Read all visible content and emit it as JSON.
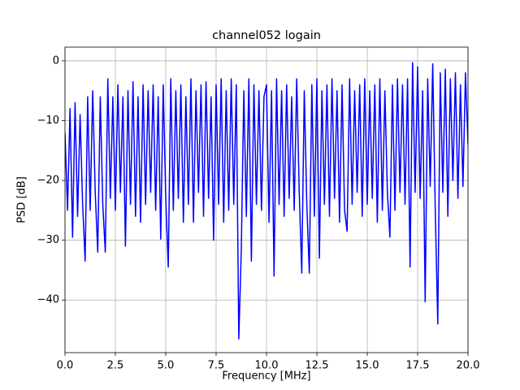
{
  "chart_data": {
    "type": "line",
    "title": "channel052 logain",
    "x_label": "Frequency [MHz]",
    "y_label": "PSD [dB]",
    "x": [
      0,
      0.125,
      0.25,
      0.375,
      0.5,
      0.625,
      0.75,
      0.875,
      1,
      1.125,
      1.25,
      1.375,
      1.5,
      1.625,
      1.75,
      1.875,
      2,
      2.125,
      2.25,
      2.375,
      2.5,
      2.625,
      2.75,
      2.875,
      3,
      3.125,
      3.25,
      3.375,
      3.5,
      3.625,
      3.75,
      3.875,
      4,
      4.125,
      4.25,
      4.375,
      4.5,
      4.625,
      4.75,
      4.875,
      5,
      5.125,
      5.25,
      5.375,
      5.5,
      5.625,
      5.75,
      5.875,
      6,
      6.125,
      6.25,
      6.375,
      6.5,
      6.625,
      6.75,
      6.875,
      7,
      7.125,
      7.25,
      7.375,
      7.5,
      7.625,
      7.75,
      7.875,
      8,
      8.125,
      8.25,
      8.375,
      8.5,
      8.625,
      8.75,
      8.875,
      9,
      9.125,
      9.25,
      9.375,
      9.5,
      9.625,
      9.75,
      9.875,
      10,
      10.125,
      10.25,
      10.375,
      10.5,
      10.625,
      10.75,
      10.875,
      11,
      11.125,
      11.25,
      11.375,
      11.5,
      11.625,
      11.75,
      11.875,
      12,
      12.125,
      12.25,
      12.375,
      12.5,
      12.625,
      12.75,
      12.875,
      13,
      13.125,
      13.25,
      13.375,
      13.5,
      13.625,
      13.75,
      13.875,
      14,
      14.125,
      14.25,
      14.375,
      14.5,
      14.625,
      14.75,
      14.875,
      15,
      15.125,
      15.25,
      15.375,
      15.5,
      15.625,
      15.75,
      15.875,
      16,
      16.125,
      16.25,
      16.375,
      16.5,
      16.625,
      16.75,
      16.875,
      17,
      17.125,
      17.25,
      17.375,
      17.5,
      17.625,
      17.75,
      17.875,
      18,
      18.125,
      18.25,
      18.375,
      18.5,
      18.625,
      18.75,
      18.875,
      19,
      19.125,
      19.25,
      19.375,
      19.5,
      19.625,
      19.75,
      19.875,
      20
    ],
    "series": [
      {
        "color": "#0000ff",
        "values": [
          -12,
          -25,
          -8,
          -29.5,
          -7,
          -26,
          -9,
          -24,
          -33.5,
          -6,
          -25,
          -5,
          -22,
          -32,
          -6,
          -24,
          -32,
          -3,
          -23,
          -6,
          -25,
          -4,
          -22,
          -6,
          -31,
          -5,
          -24,
          -3.5,
          -26,
          -6,
          -27,
          -4,
          -24,
          -5,
          -22,
          -4,
          -25,
          -6,
          -29.8,
          -4,
          -23,
          -34.5,
          -3,
          -25,
          -5,
          -23,
          -4,
          -27,
          -6,
          -24,
          -3,
          -27,
          -5,
          -22,
          -4,
          -26,
          -3.5,
          -23,
          -6,
          -30,
          -4,
          -24,
          -3,
          -27,
          -5,
          -25,
          -3,
          -24,
          -4,
          -46.5,
          -31.5,
          -5,
          -26,
          -3,
          -33.5,
          -4,
          -24,
          -5,
          -25,
          -6,
          -4,
          -27,
          -5,
          -36,
          -3,
          -24,
          -5,
          -26,
          -4,
          -23,
          -6,
          -25,
          -3,
          -22,
          -35.5,
          -5,
          -24,
          -35.5,
          -4,
          -26,
          -3,
          -33,
          -5,
          -24,
          -4,
          -26,
          -3,
          -23,
          -5,
          -27,
          -4,
          -25,
          -28.5,
          -3,
          -24,
          -5,
          -22,
          -4,
          -26,
          -3,
          -24,
          -5,
          -23,
          -4,
          -27,
          -3,
          -25,
          -5,
          -22,
          -29.5,
          -4,
          -25,
          -3,
          -22,
          -4,
          -24,
          -3,
          -34.5,
          -0.3,
          -22,
          -1,
          -23,
          -5,
          -40.3,
          -3,
          -21,
          -0.5,
          -25,
          -44,
          -2,
          -22,
          -1.4,
          -26,
          -3,
          -20,
          -2,
          -23,
          -4,
          -21,
          -2,
          -14
        ]
      }
    ],
    "xlim": [
      0,
      20
    ],
    "ylim": [
      -48.8,
      2.3
    ],
    "xticks": [
      {
        "value": 0,
        "label": "0.0"
      },
      {
        "value": 2.5,
        "label": "2.5"
      },
      {
        "value": 5,
        "label": "5.0"
      },
      {
        "value": 7.5,
        "label": "7.5"
      },
      {
        "value": 10,
        "label": "10.0"
      },
      {
        "value": 12.5,
        "label": "12.5"
      },
      {
        "value": 15,
        "label": "15.0"
      },
      {
        "value": 17.5,
        "label": "17.5"
      },
      {
        "value": 20,
        "label": "20.0"
      }
    ],
    "yticks": [
      {
        "value": -40,
        "label": "−40"
      },
      {
        "value": -30,
        "label": "−30"
      },
      {
        "value": -20,
        "label": "−20"
      },
      {
        "value": -10,
        "label": "−10"
      },
      0
    ],
    "grid": true
  }
}
